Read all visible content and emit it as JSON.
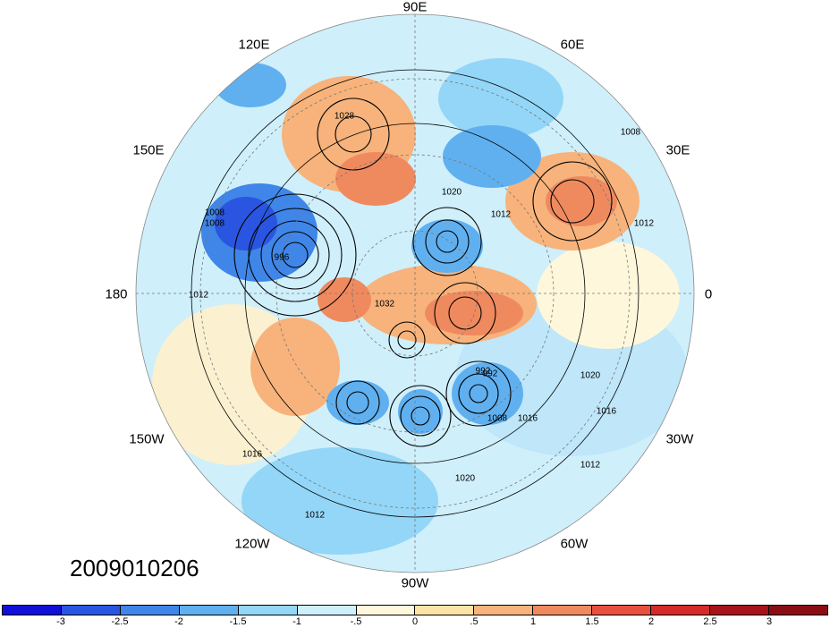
{
  "map": {
    "projection": "north-polar-stereographic",
    "lon_labels": {
      "top": "90E",
      "top_left": "120E",
      "top_right": "60E",
      "upper_left": "150E",
      "upper_right": "30E",
      "left": "180",
      "right": "0",
      "lower_left": "150W",
      "lower_right": "30W",
      "bottom_left": "120W",
      "bottom_right": "60W",
      "bottom": "90W"
    },
    "contour_labels": [
      "1028",
      "1020",
      "1012",
      "1008",
      "992",
      "996",
      "1012",
      "1032",
      "992",
      "1008",
      "1016",
      "1020",
      "1016",
      "1012",
      "1016",
      "1012",
      "1020",
      "1008",
      "1012",
      "1008"
    ],
    "date_stamp": "2009010206"
  },
  "colorbar": {
    "colors": [
      "#1010d8",
      "#2a55e0",
      "#3f86e8",
      "#60b0f0",
      "#93d6f7",
      "#cfeffb",
      "#fff7dc",
      "#fbe3a8",
      "#f7b37b",
      "#ef8a5f",
      "#e8503e",
      "#d42a2a",
      "#a8121a"
    ],
    "tick_labels": [
      "-3",
      "-2.5",
      "-2",
      "-1.5",
      "-1",
      "-.5",
      "0",
      ".5",
      "1",
      "1.5",
      "2",
      "2.5",
      "3"
    ]
  }
}
